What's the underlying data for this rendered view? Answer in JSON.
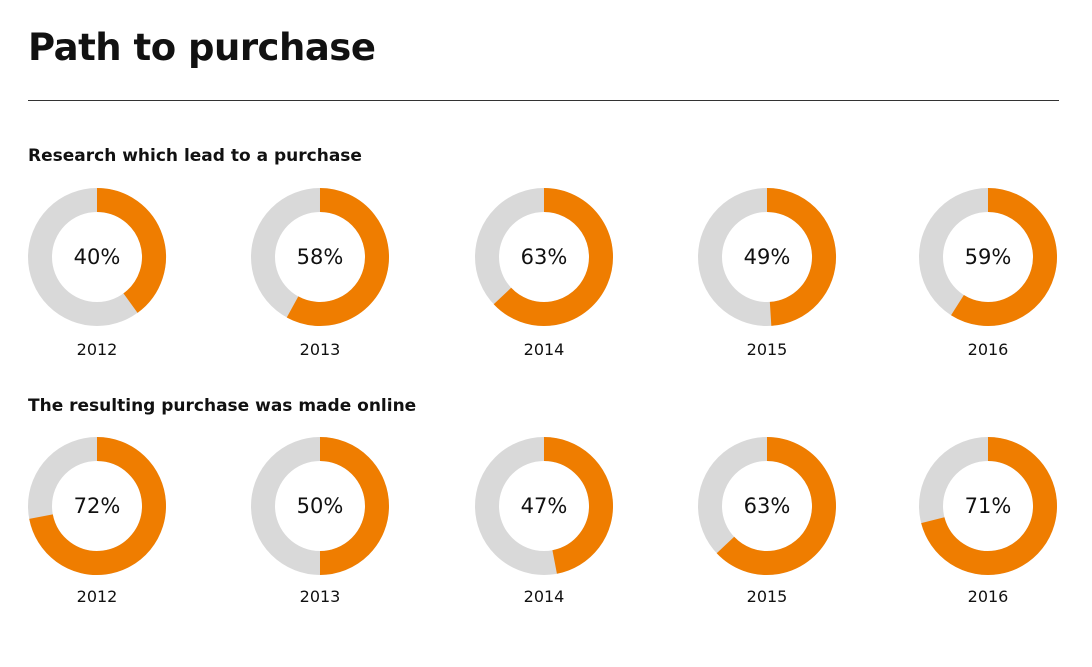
{
  "title": "Path to purchase",
  "colors": {
    "accent": "#ef7d00",
    "track": "#d9d9d9"
  },
  "chart_data": [
    {
      "type": "pie",
      "title": "Research which lead to a purchase",
      "categories": [
        "2012",
        "2013",
        "2014",
        "2015",
        "2016"
      ],
      "values": [
        40,
        58,
        63,
        49,
        59
      ],
      "value_labels": [
        "40%",
        "58%",
        "63%",
        "49%",
        "59%"
      ]
    },
    {
      "type": "pie",
      "title": "The resulting purchase was made online",
      "categories": [
        "2012",
        "2013",
        "2014",
        "2015",
        "2016"
      ],
      "values": [
        72,
        50,
        47,
        63,
        71
      ],
      "value_labels": [
        "72%",
        "50%",
        "47%",
        "63%",
        "71%"
      ]
    }
  ]
}
